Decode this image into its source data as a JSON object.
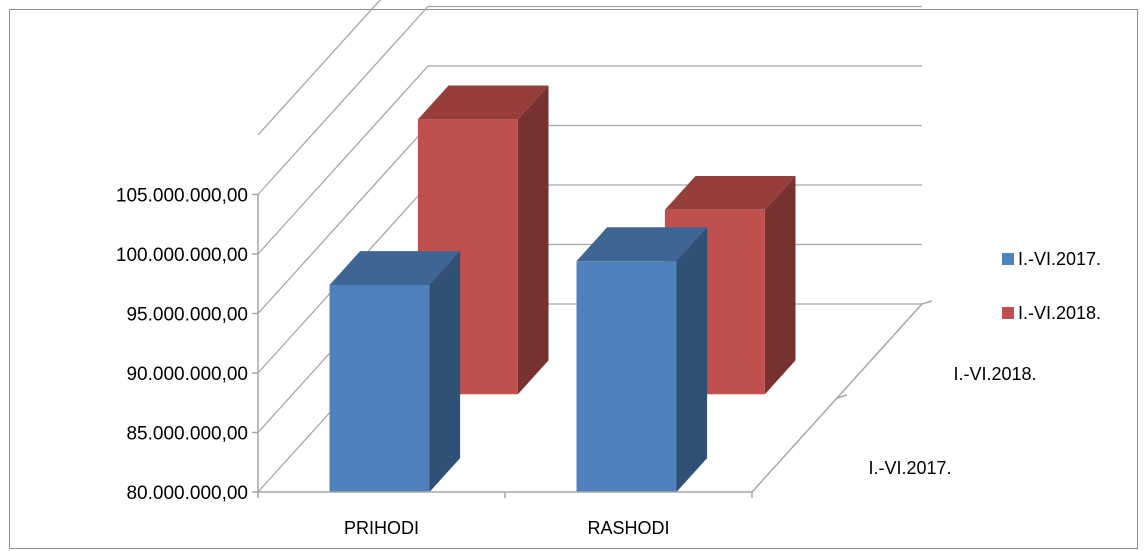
{
  "chart_data": {
    "type": "bar",
    "title": "",
    "xlabel": "",
    "ylabel": "",
    "categories": [
      "PRIHODI",
      "RASHODI"
    ],
    "series": [
      {
        "name": "I.-VI.2017.",
        "color": "#4f81bd",
        "values": [
          97400000,
          99400000
        ]
      },
      {
        "name": "I.-VI.2018.",
        "color": "#c0504d",
        "values": [
          103100000,
          95500000
        ]
      }
    ],
    "yticks": [
      "80.000.000,00",
      "85.000.000,00",
      "90.000.000,00",
      "95.000.000,00",
      "100.000.000,00",
      "105.000.000,00"
    ],
    "ylim": [
      80000000,
      105000000
    ],
    "depth_labels": [
      "I.-VI.2017.",
      "I.-VI.2018."
    ],
    "grid": true,
    "legend": "right"
  }
}
